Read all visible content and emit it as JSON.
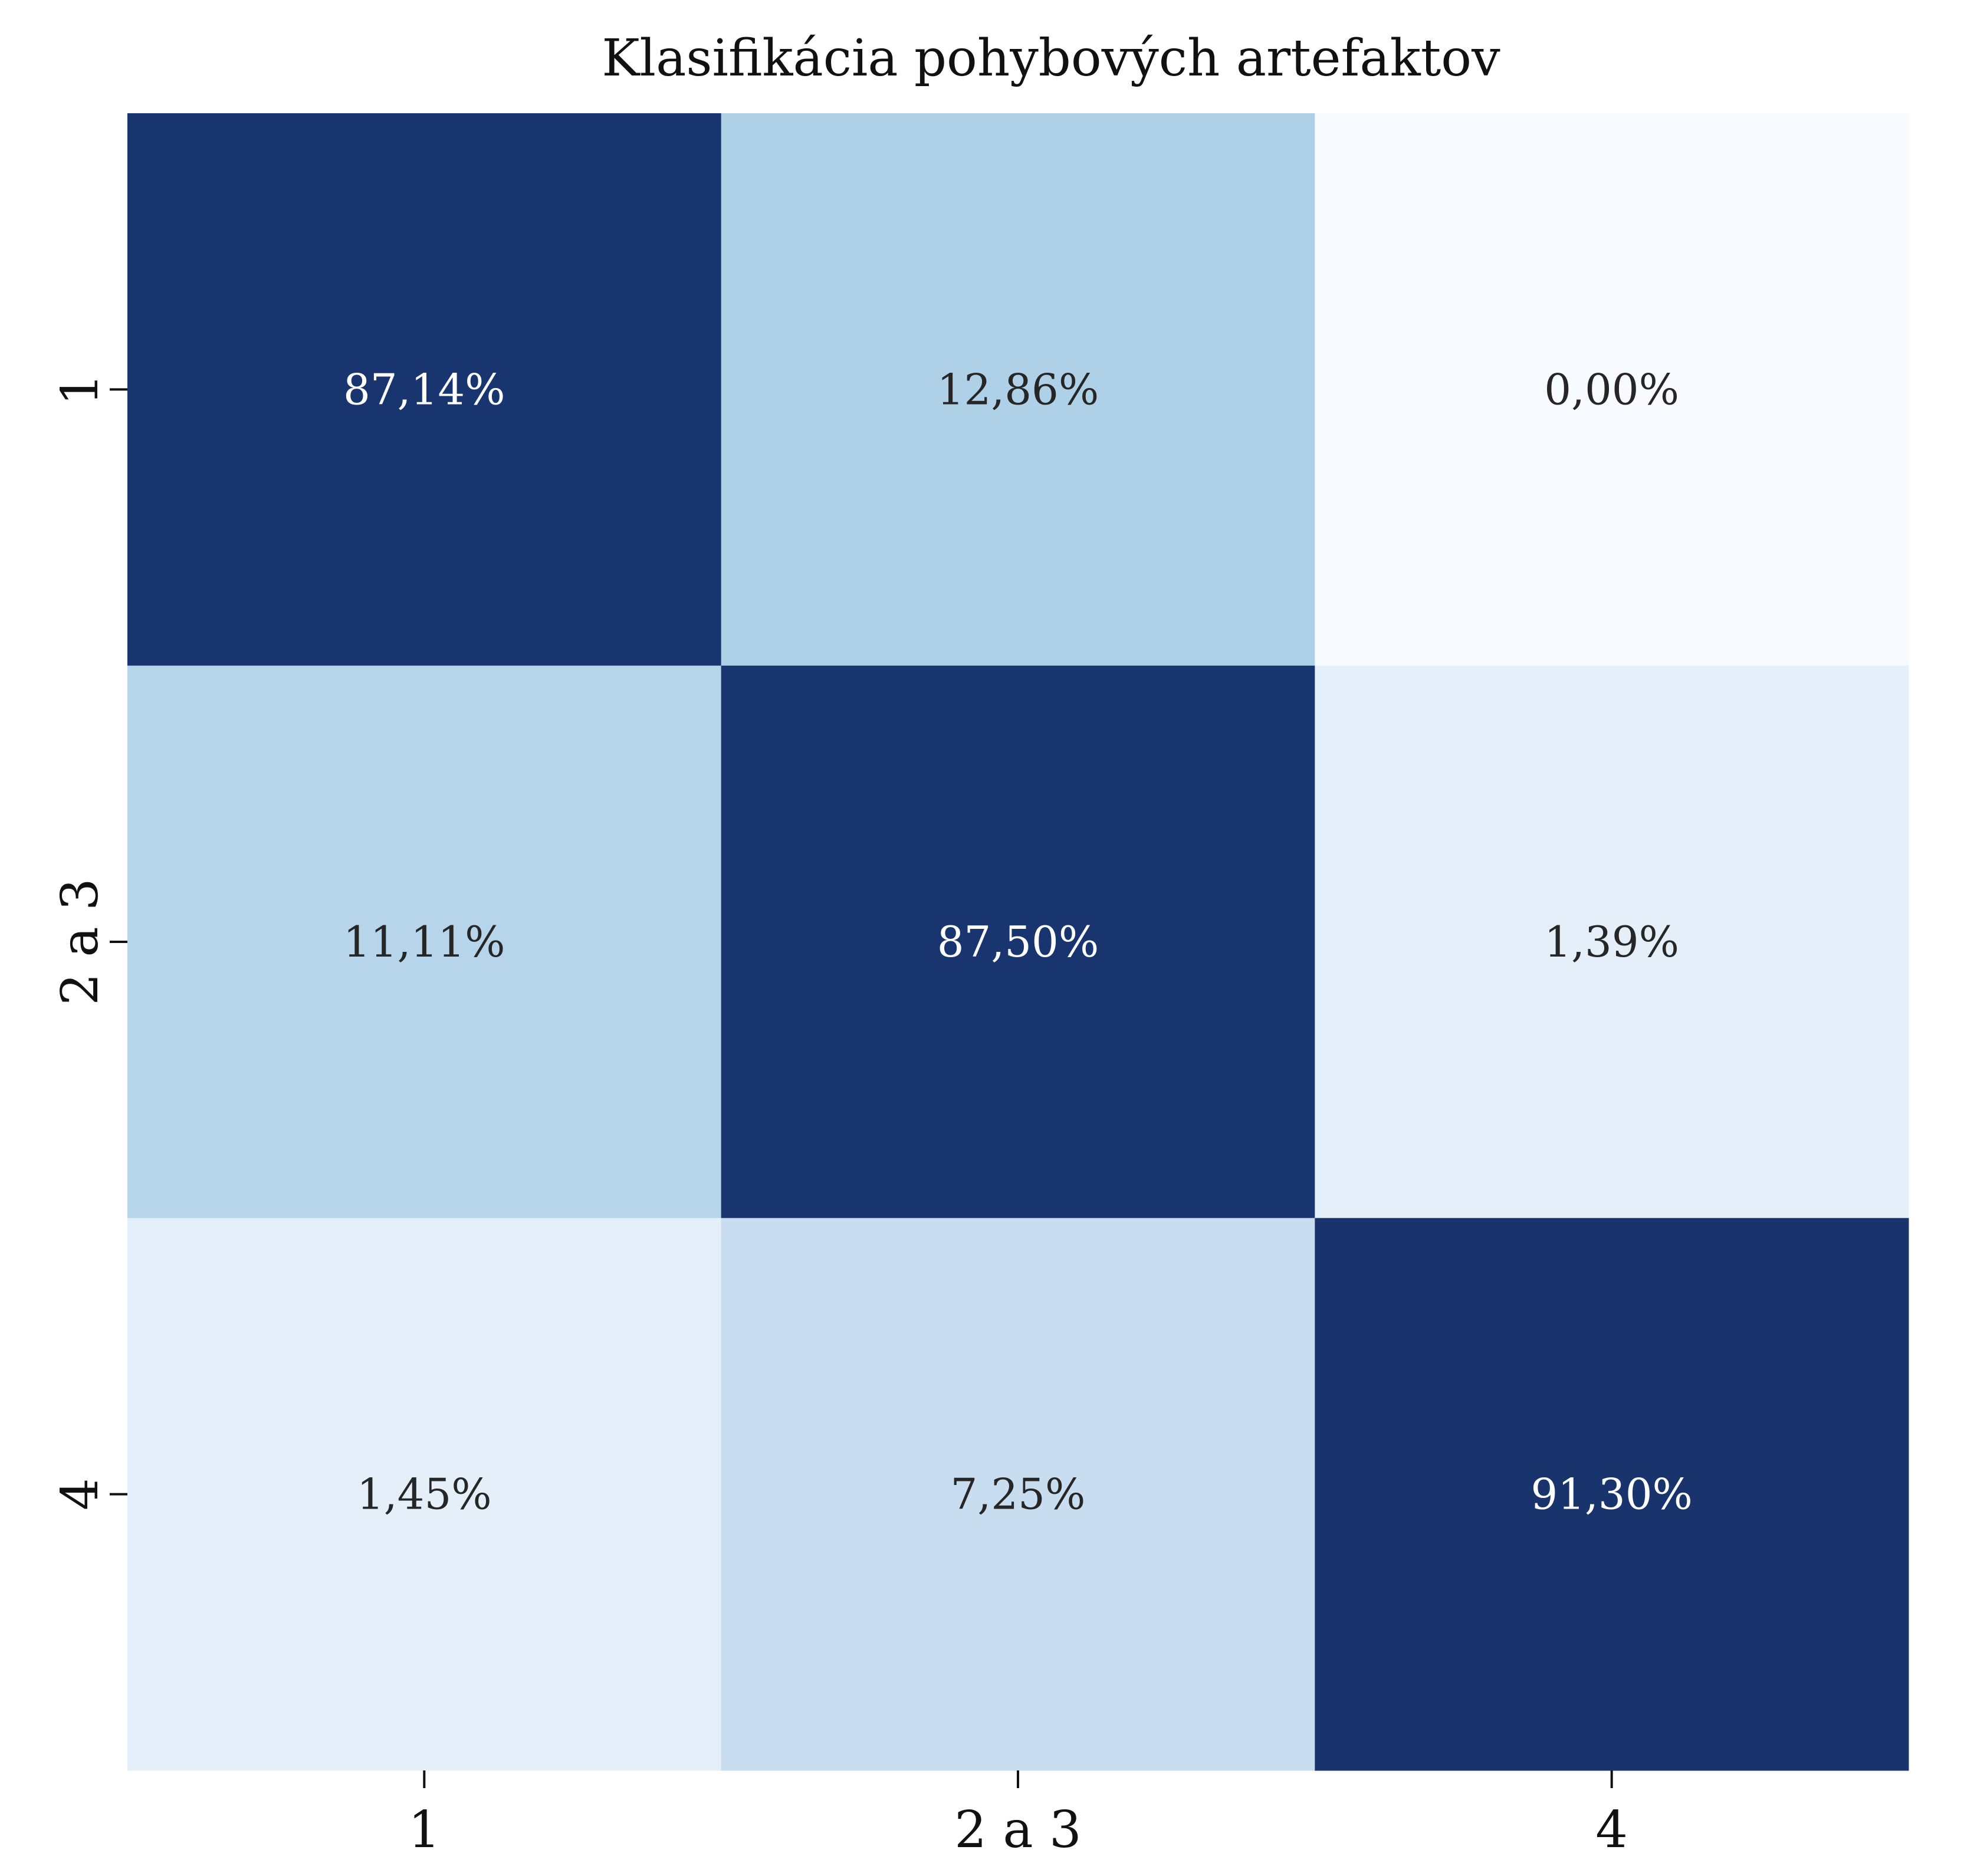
{
  "chart_data": {
    "type": "heatmap",
    "title": "Klasifikácia pohybových artefaktov",
    "xlabel": "",
    "ylabel": "",
    "row_labels": [
      "1",
      "2 a 3",
      "4"
    ],
    "col_labels": [
      "1",
      "2 a 3",
      "4"
    ],
    "values": [
      [
        87.14,
        12.86,
        0.0
      ],
      [
        11.11,
        87.5,
        1.39
      ],
      [
        1.45,
        7.25,
        91.3
      ]
    ],
    "cell_labels": [
      [
        "87,14%",
        "12,86%",
        "0,00%"
      ],
      [
        "11,11%",
        "87,50%",
        "1,39%"
      ],
      [
        "1,45%",
        "7,25%",
        "91,30%"
      ]
    ],
    "value_range": [
      0,
      100
    ],
    "colorbar": false,
    "grid": false,
    "colors": {
      "low": "#f7fbff",
      "mid": "#deebf7",
      "high": "#172f66",
      "text_dark": "#262626",
      "text_light": "#ffffff"
    }
  }
}
